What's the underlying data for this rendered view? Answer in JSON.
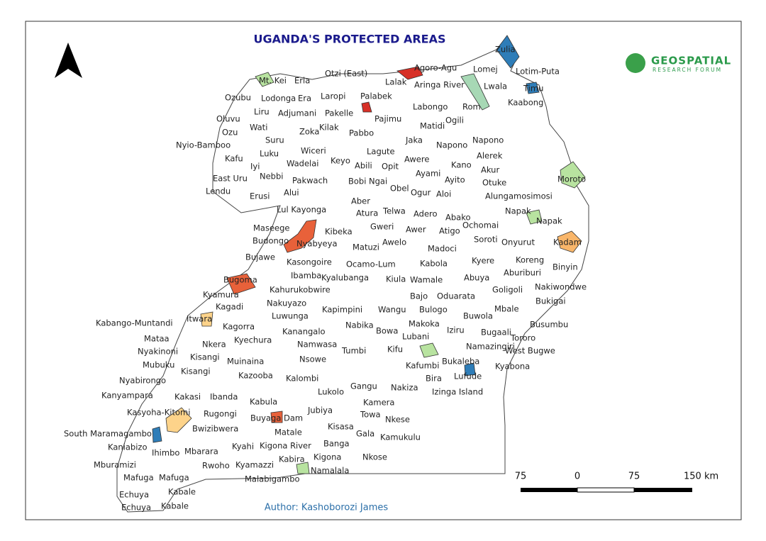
{
  "title": "UGANDA'S PROTECTED AREAS",
  "logo": {
    "name": "GEOSPATIAL",
    "subtitle": "RESEARCH FORUM"
  },
  "labels": [
    "Zulia",
    "Agoro-Agu",
    "Lomej",
    "Lotim-Puta",
    "Otzi (East)",
    "Mt. Kei",
    "Erla",
    "Lalak",
    "Aringa River",
    "Lwala",
    "Timu",
    "Ozubu",
    "Lodonga",
    "Era",
    "Laropi",
    "Palabek",
    "Kaabong",
    "Labongo",
    "Rom",
    "Liru",
    "Adjumani",
    "Pakelle",
    "Oluvu",
    "Pajimu",
    "Ogili",
    "Matidi",
    "Wati",
    "Ozu",
    "Zoka",
    "Kilak",
    "Pabbo",
    "Suru",
    "Jaka",
    "Napono",
    "Nyio-Bamboo",
    "Napono",
    "Wiceri",
    "Lagute",
    "Luku",
    "Kafu",
    "Keyo",
    "Awere",
    "Alerek",
    "Iyi",
    "Wadelai",
    "Abili",
    "Opit",
    "Kano",
    "Akur",
    "Ayami",
    "Nebbi",
    "East Uru",
    "Pakwach",
    "Bobi",
    "Ngai",
    "Ayito",
    "Otuke",
    "Moroto",
    "Obel",
    "Lendu",
    "Erusi",
    "Alui",
    "Ogur",
    "Aloi",
    "Alungamosimosi",
    "Aber",
    "Lul Kayonga",
    "Atura",
    "Telwa",
    "Adero",
    "Abako",
    "Napak",
    "Napak",
    "Ochomai",
    "Maseege",
    "Gweri",
    "Awer",
    "Atigo",
    "Kibeka",
    "Soroti",
    "Budongo",
    "Nyabyeya",
    "Awelo",
    "Onyurut",
    "Kadam",
    "Matuzi",
    "Madoci",
    "Bujawe",
    "Kasongoire",
    "Koreng",
    "Kyere",
    "Ocamo-Lum",
    "Kabola",
    "Binyin",
    "Aburiburi",
    "Ibamba",
    "Kyalubanga",
    "Bugoma",
    "Kiula",
    "Wamale",
    "Abuya",
    "Nakiwondwe",
    "Kahurukobwire",
    "Goligoli",
    "Kyamura",
    "Bajo",
    "Oduarata",
    "Bukigai",
    "Nakuyazo",
    "Kagadi",
    "Kapimpini",
    "Wangu",
    "Bulogo",
    "Mbale",
    "Buwola",
    "Kabango-Muntandi",
    "Itwara",
    "Luwunga",
    "Kagorra",
    "Nabika",
    "Bowa",
    "Makoka",
    "Busumbu",
    "Mataa",
    "Kanangalo",
    "Iziru",
    "Bugaali",
    "Lubani",
    "Tororo",
    "Kyechura",
    "Namwasa",
    "Nkera",
    "Nyakinoni",
    "Tumbi",
    "Kifu",
    "Namazingiri",
    "West Bugwe",
    "Mubuku",
    "Kisangi",
    "Kisangi",
    "Muinaina",
    "Nsowe",
    "Bukaleba",
    "Kafumbi",
    "Kyabona",
    "Kazooba",
    "Kalombi",
    "Bira",
    "Lufude",
    "Nyabirongo",
    "Gangu",
    "Nakiza",
    "Izinga Island",
    "Kanyampara",
    "Kakasi",
    "Ibanda",
    "Lukolo",
    "Kabula",
    "Kamera",
    "Rugongi",
    "Kasyoha-Kitomi",
    "Jubiya",
    "Towa",
    "Buyaga Dam",
    "Nkese",
    "Bwizibwera",
    "South Maramagambo",
    "Kisasa",
    "Gala",
    "Kamukulu",
    "Matale",
    "Kaniabizo",
    "Ihimbo",
    "Mbarara",
    "Kyahi",
    "Kigona River",
    "Banga",
    "Mburamizi",
    "Rwoho",
    "Kyamazzi",
    "Kabira",
    "Kigona",
    "Nkose",
    "Namalala",
    "Mafuga",
    "Mafuga",
    "Malabigambo",
    "Echuya",
    "Kabale",
    "Echuya",
    "Kabale"
  ],
  "scale_bar": {
    "labels": [
      "75",
      "0",
      "75",
      "150 km"
    ]
  },
  "author": "Author: Kashoborozi James"
}
